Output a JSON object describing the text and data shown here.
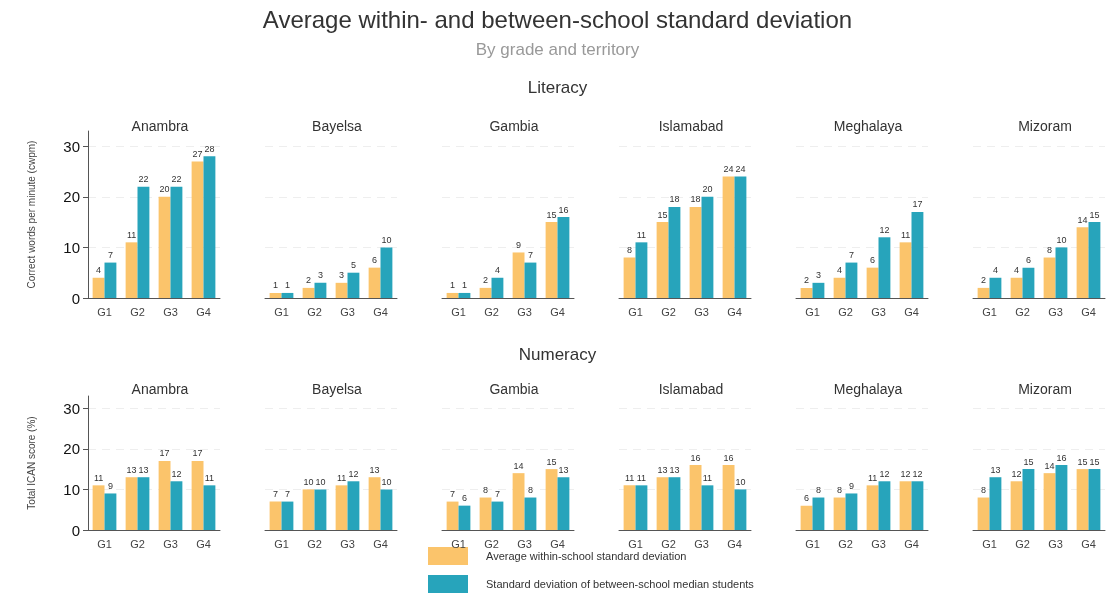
{
  "chart_data": [
    {
      "type": "bar",
      "title": "Anambra",
      "annotations": [
        "Average within- and between-school standard deviation",
        "By grade and territory",
        "Literacy"
      ],
      "ylabel": "Correct words per minute (cwpm)",
      "categories": [
        "G1",
        "G2",
        "G3",
        "G4"
      ],
      "ylim": [
        0,
        33
      ],
      "yticks": [
        0,
        10,
        20,
        30
      ],
      "grid": "y",
      "data_labels": true,
      "legend": "bottom",
      "series": [
        {
          "name": "Average within-school standard deviation",
          "color": "#fbc46b",
          "values": [
            4,
            11,
            20,
            27
          ]
        },
        {
          "name": "Standard deviation of between-school median students",
          "color": "#27a4bb",
          "values": [
            7,
            22,
            22,
            28
          ]
        }
      ]
    },
    {
      "type": "bar",
      "title": "Bayelsa",
      "categories": [
        "G1",
        "G2",
        "G3",
        "G4"
      ],
      "ylim": [
        0,
        30
      ],
      "yticks": [
        0,
        10,
        20,
        30
      ],
      "grid": "y",
      "data_labels": true,
      "tick_labels": "x",
      "series": [
        {
          "color": "#fbc46b",
          "values": [
            1,
            2,
            3,
            6
          ]
        },
        {
          "color": "#27a4bb",
          "values": [
            1,
            3,
            5,
            10
          ]
        }
      ]
    },
    {
      "type": "bar",
      "title": "Gambia",
      "categories": [
        "G1",
        "G2",
        "G3",
        "G4"
      ],
      "ylim": [
        0,
        30
      ],
      "yticks": [
        0,
        10,
        20,
        30
      ],
      "grid": "y",
      "data_labels": true,
      "tick_labels": "x",
      "series": [
        {
          "color": "#fbc46b",
          "values": [
            1,
            2,
            9,
            15
          ]
        },
        {
          "color": "#27a4bb",
          "values": [
            1,
            4,
            7,
            16
          ]
        }
      ]
    },
    {
      "type": "bar",
      "title": "Islamabad",
      "categories": [
        "G1",
        "G2",
        "G3",
        "G4"
      ],
      "ylim": [
        0,
        30
      ],
      "yticks": [
        0,
        10,
        20,
        30
      ],
      "grid": "y",
      "data_labels": true,
      "tick_labels": "x",
      "series": [
        {
          "color": "#fbc46b",
          "values": [
            8,
            15,
            18,
            24
          ]
        },
        {
          "color": "#27a4bb",
          "values": [
            11,
            18,
            20,
            24
          ]
        }
      ]
    },
    {
      "type": "bar",
      "title": "Meghalaya",
      "categories": [
        "G1",
        "G2",
        "G3",
        "G4"
      ],
      "ylim": [
        0,
        30
      ],
      "yticks": [
        0,
        10,
        20,
        30
      ],
      "grid": "y",
      "data_labels": true,
      "tick_labels": "x",
      "series": [
        {
          "color": "#fbc46b",
          "values": [
            2,
            4,
            6,
            11
          ]
        },
        {
          "color": "#27a4bb",
          "values": [
            3,
            7,
            12,
            17
          ]
        }
      ]
    },
    {
      "type": "bar",
      "title": "Mizoram",
      "categories": [
        "G1",
        "G2",
        "G3",
        "G4"
      ],
      "ylim": [
        0,
        30
      ],
      "yticks": [
        0,
        10,
        20,
        30
      ],
      "grid": "y",
      "data_labels": true,
      "tick_labels": "x",
      "series": [
        {
          "color": "#fbc46b",
          "values": [
            2,
            4,
            8,
            14
          ]
        },
        {
          "color": "#27a4bb",
          "values": [
            4,
            6,
            10,
            15
          ]
        }
      ]
    },
    {
      "type": "bar",
      "title": "Anambra",
      "annotations": [
        "Numeracy"
      ],
      "ylabel": "Total ICAN score (%)",
      "categories": [
        "G1",
        "G2",
        "G3",
        "G4"
      ],
      "ylim": [
        0,
        33
      ],
      "yticks": [
        0,
        10,
        20,
        30
      ],
      "grid": "y",
      "data_labels": true,
      "series": [
        {
          "color": "#fbc46b",
          "values": [
            11,
            13,
            17,
            17
          ]
        },
        {
          "color": "#27a4bb",
          "values": [
            9,
            13,
            12,
            11
          ]
        }
      ]
    },
    {
      "type": "bar",
      "title": "Bayelsa",
      "categories": [
        "G1",
        "G2",
        "G3",
        "G4"
      ],
      "ylim": [
        0,
        30
      ],
      "yticks": [
        0,
        10,
        20,
        30
      ],
      "grid": "y",
      "data_labels": true,
      "tick_labels": "x",
      "series": [
        {
          "color": "#fbc46b",
          "values": [
            7,
            10,
            11,
            13
          ]
        },
        {
          "color": "#27a4bb",
          "values": [
            7,
            10,
            12,
            10
          ]
        }
      ]
    },
    {
      "type": "bar",
      "title": "Gambia",
      "categories": [
        "G1",
        "G2",
        "G3",
        "G4"
      ],
      "ylim": [
        0,
        30
      ],
      "yticks": [
        0,
        10,
        20,
        30
      ],
      "grid": "y",
      "data_labels": true,
      "tick_labels": "x",
      "series": [
        {
          "color": "#fbc46b",
          "values": [
            7,
            8,
            14,
            15
          ]
        },
        {
          "color": "#27a4bb",
          "values": [
            6,
            7,
            8,
            13
          ]
        }
      ]
    },
    {
      "type": "bar",
      "title": "Islamabad",
      "categories": [
        "G1",
        "G2",
        "G3",
        "G4"
      ],
      "ylim": [
        0,
        30
      ],
      "yticks": [
        0,
        10,
        20,
        30
      ],
      "grid": "y",
      "data_labels": true,
      "tick_labels": "x",
      "series": [
        {
          "color": "#fbc46b",
          "values": [
            11,
            13,
            16,
            16
          ]
        },
        {
          "color": "#27a4bb",
          "values": [
            11,
            13,
            11,
            10
          ]
        }
      ]
    },
    {
      "type": "bar",
      "title": "Meghalaya",
      "categories": [
        "G1",
        "G2",
        "G3",
        "G4"
      ],
      "ylim": [
        0,
        30
      ],
      "yticks": [
        0,
        10,
        20,
        30
      ],
      "grid": "y",
      "data_labels": true,
      "tick_labels": "x",
      "series": [
        {
          "color": "#fbc46b",
          "values": [
            6,
            8,
            11,
            12
          ]
        },
        {
          "color": "#27a4bb",
          "values": [
            8,
            9,
            12,
            12
          ]
        }
      ]
    },
    {
      "type": "bar",
      "title": "Mizoram",
      "categories": [
        "G1",
        "G2",
        "G3",
        "G4"
      ],
      "ylim": [
        0,
        30
      ],
      "yticks": [
        0,
        10,
        20,
        30
      ],
      "grid": "y",
      "data_labels": true,
      "tick_labels": "x",
      "series": [
        {
          "color": "#fbc46b",
          "values": [
            8,
            12,
            14,
            15
          ]
        },
        {
          "color": "#27a4bb",
          "values": [
            13,
            15,
            16,
            15
          ]
        }
      ]
    }
  ]
}
